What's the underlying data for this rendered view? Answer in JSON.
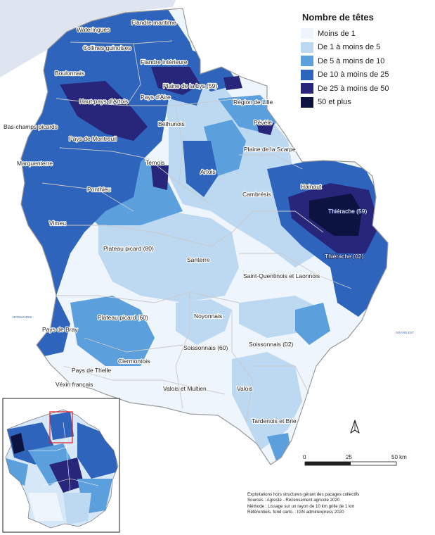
{
  "legend": {
    "title": "Nombre de têtes",
    "classes": [
      {
        "label": "Moins de 1",
        "color": "#eff5fc"
      },
      {
        "label": "De 1 à moins de 5",
        "color": "#bdd9f2"
      },
      {
        "label": "De 5 à moins de 10",
        "color": "#5b9fdc"
      },
      {
        "label": "De 10 à moins de 25",
        "color": "#2e64bc"
      },
      {
        "label": "De 25 à moins de 50",
        "color": "#27267a"
      },
      {
        "label": "50 et plus",
        "color": "#0d1340"
      }
    ]
  },
  "regions": [
    {
      "name": "Flandre maritime"
    },
    {
      "name": "Wateringues"
    },
    {
      "name": "Collines guinoises"
    },
    {
      "name": "Flandre intérieure"
    },
    {
      "name": "Boulonnais"
    },
    {
      "name": "Plaine de la Lys (59)"
    },
    {
      "name": "Haut-pays d'Artois"
    },
    {
      "name": "Pays d'Aire"
    },
    {
      "name": "Région de Lille"
    },
    {
      "name": "Bas-champs picards"
    },
    {
      "name": "Béthunois"
    },
    {
      "name": "Pévèle"
    },
    {
      "name": "Pays de Montreuil"
    },
    {
      "name": "Plaine de la Scarpe"
    },
    {
      "name": "Ternois"
    },
    {
      "name": "Marquenterre"
    },
    {
      "name": "Artois"
    },
    {
      "name": "Hainaut"
    },
    {
      "name": "Cambrésis"
    },
    {
      "name": "Ponthieu"
    },
    {
      "name": "Thiérache (59)"
    },
    {
      "name": "Vimeu"
    },
    {
      "name": "Plateau picard (80)"
    },
    {
      "name": "Thiérache (02)"
    },
    {
      "name": "Santerre"
    },
    {
      "name": "Saint-Quentinois et Laonnois"
    },
    {
      "name": "Noyonnais"
    },
    {
      "name": "Plateau picard (60)"
    },
    {
      "name": "Pays de Bray"
    },
    {
      "name": "Soissonnais (60)"
    },
    {
      "name": "Soissonnais (02)"
    },
    {
      "name": "Clermontois"
    },
    {
      "name": "Pays de Thelle"
    },
    {
      "name": "Véxin français"
    },
    {
      "name": "Valois et Multien"
    },
    {
      "name": "Valois"
    },
    {
      "name": "Tardenois et Brie"
    }
  ],
  "neighbours": {
    "west": "NORMANDIE",
    "east": "GRAND EST"
  },
  "scale": {
    "ticks": [
      "0",
      "25",
      "50 km"
    ]
  },
  "sources": [
    "Exploitations hors structures gérant des pacages collectifs",
    "Sources : Agreste - Recensement agricole 2020",
    "Méthode : Lissage sur un rayon de 10 km grille de 1 km",
    "Référentiels, fond carto. : IGN adminexpress 2020"
  ]
}
